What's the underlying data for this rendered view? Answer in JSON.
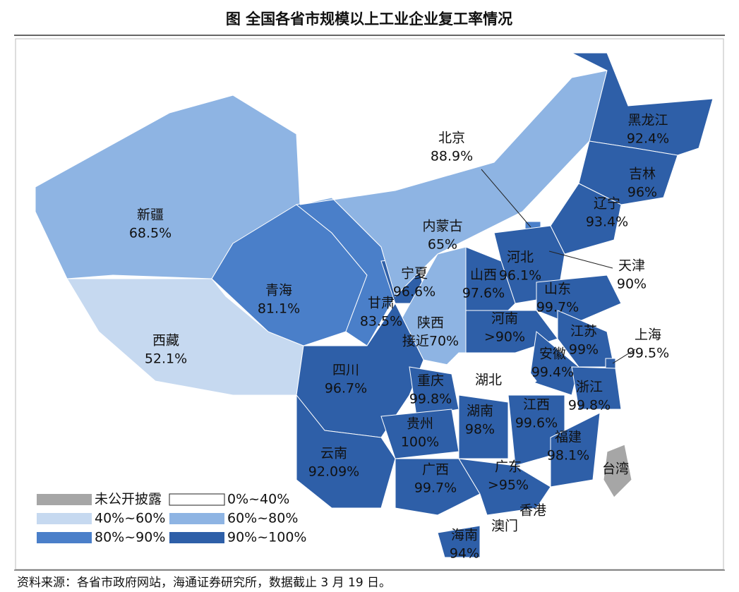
{
  "title": "图  全国各省市规模以上工业企业复工率情况",
  "provinces": [
    {
      "name": "新疆",
      "value": "68.5%",
      "color": "#8eb4e3"
    },
    {
      "name": "西藏",
      "value": "52.1%",
      "color": "#c6d9f0"
    },
    {
      "name": "青海",
      "value": "81.1%",
      "color": "#4a7fc9"
    },
    {
      "name": "甘肃",
      "value": "83.5%",
      "color": "#4a7fc9"
    },
    {
      "name": "宁夏",
      "value": "96.6%",
      "color": "#2e5fa8"
    },
    {
      "name": "内蒙古",
      "value": "65%",
      "color": "#8eb4e3"
    },
    {
      "name": "陕西",
      "value": "接近70%",
      "color": "#8eb4e3"
    },
    {
      "name": "北京",
      "value": "88.9%",
      "color": "#4a7fc9"
    },
    {
      "name": "天津",
      "value": "90%",
      "color": "#2e5fa8"
    },
    {
      "name": "河北",
      "value": "96.1%",
      "color": "#2e5fa8"
    },
    {
      "name": "山西",
      "value": "97.6%",
      "color": "#2e5fa8"
    },
    {
      "name": "河南",
      "value": ">90%",
      "color": "#2e5fa8"
    },
    {
      "name": "山东",
      "value": "99.7%",
      "color": "#2e5fa8"
    },
    {
      "name": "江苏",
      "value": "99%",
      "color": "#2e5fa8"
    },
    {
      "name": "上海",
      "value": "99.5%",
      "color": "#2e5fa8"
    },
    {
      "name": "安徽",
      "value": "99.4%",
      "color": "#2e5fa8"
    },
    {
      "name": "湖北",
      "color": "#ffffff"
    },
    {
      "name": "浙江",
      "value": "99.8%",
      "color": "#2e5fa8"
    },
    {
      "name": "四川",
      "value": "96.7%",
      "color": "#2e5fa8"
    },
    {
      "name": "重庆",
      "value": "99.8%",
      "color": "#2e5fa8"
    },
    {
      "name": "贵州",
      "value": "100%",
      "color": "#2e5fa8"
    },
    {
      "name": "湖南",
      "value": "98%",
      "color": "#2e5fa8"
    },
    {
      "name": "江西",
      "value": "99.6%",
      "color": "#2e5fa8"
    },
    {
      "name": "福建",
      "value": "98.1%",
      "color": "#2e5fa8"
    },
    {
      "name": "云南",
      "value": "92.09%",
      "color": "#2e5fa8"
    },
    {
      "name": "广西",
      "value": "99.7%",
      "color": "#2e5fa8"
    },
    {
      "name": "广东",
      "value": ">95%",
      "color": "#2e5fa8"
    },
    {
      "name": "海南",
      "value": "94%",
      "color": "#2e5fa8"
    },
    {
      "name": "黑龙江",
      "value": "92.4%",
      "color": "#2e5fa8"
    },
    {
      "name": "吉林",
      "value": "96%",
      "color": "#2e5fa8"
    },
    {
      "name": "辽宁",
      "value": "93.4%",
      "color": "#2e5fa8"
    },
    {
      "name": "台湾",
      "color": "#a6a6a6"
    },
    {
      "name": "香港"
    },
    {
      "name": "澳门"
    }
  ],
  "legend": [
    {
      "label": "未公开披露",
      "color": "#a6a6a6"
    },
    {
      "label": "0%~40%",
      "color": "#ffffff"
    },
    {
      "label": "40%~60%",
      "color": "#c6d9f0"
    },
    {
      "label": "60%~80%",
      "color": "#8eb4e3"
    },
    {
      "label": "80%~90%",
      "color": "#4a7fc9"
    },
    {
      "label": "90%~100%",
      "color": "#2e5fa8"
    }
  ],
  "source": "资料来源：各省市政府网站，海通证券研究所，数据截止 3 月 19 日。"
}
